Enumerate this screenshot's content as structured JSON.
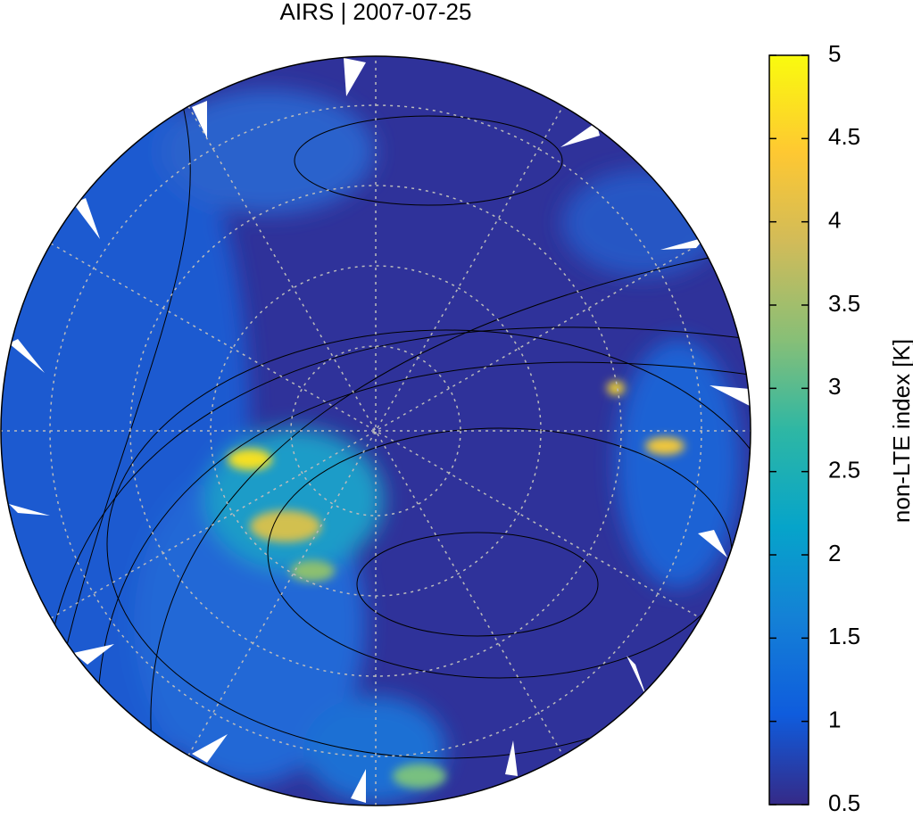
{
  "title": "AIRS | 2007-07-25",
  "colorbar": {
    "label": "non-LTE index [K]",
    "lim": [
      0.5,
      5
    ],
    "ticks": [
      0.5,
      1,
      1.5,
      2,
      2.5,
      3,
      3.5,
      4,
      4.5,
      5
    ]
  }
}
